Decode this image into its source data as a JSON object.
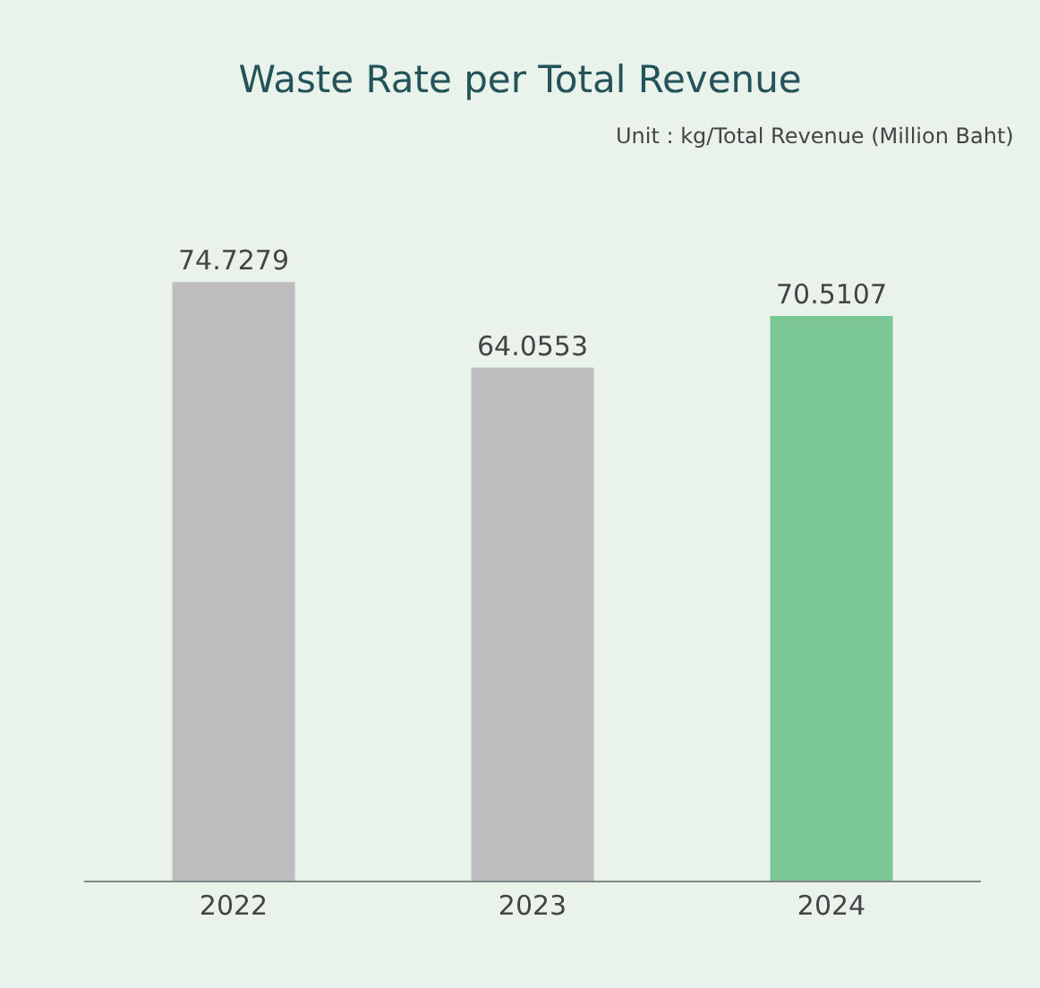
{
  "chart_data": {
    "type": "bar",
    "title": "Waste Rate per Total Revenue",
    "subtitle": "Unit : kg/Total Revenue (Million Baht)",
    "categories": [
      "2022",
      "2023",
      "2024"
    ],
    "values": [
      74.7279,
      64.0553,
      70.5107
    ],
    "colors": [
      "#bdbdbf",
      "#bdbdbf",
      "#7bc795"
    ],
    "tick_labels": "x",
    "data_labels": true,
    "grid": false,
    "legend": false
  }
}
